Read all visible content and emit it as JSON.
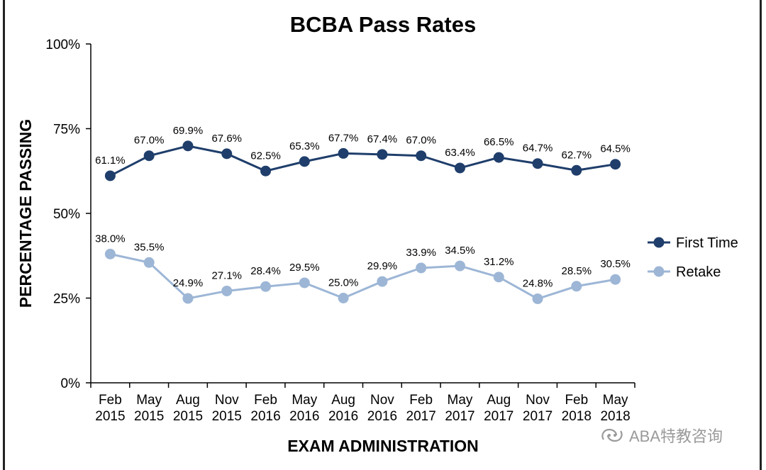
{
  "chart_data": {
    "type": "line",
    "title": "BCBA Pass Rates",
    "xlabel": "EXAM ADMINISTRATION",
    "ylabel": "PERCENTAGE PASSING",
    "ylim": [
      0,
      100
    ],
    "yticks": [
      "0%",
      "25%",
      "50%",
      "75%",
      "100%"
    ],
    "categories": [
      [
        "Feb",
        "2015"
      ],
      [
        "May",
        "2015"
      ],
      [
        "Aug",
        "2015"
      ],
      [
        "Nov",
        "2015"
      ],
      [
        "Feb",
        "2016"
      ],
      [
        "May",
        "2016"
      ],
      [
        "Aug",
        "2016"
      ],
      [
        "Nov",
        "2016"
      ],
      [
        "Feb",
        "2017"
      ],
      [
        "May",
        "2017"
      ],
      [
        "Aug",
        "2017"
      ],
      [
        "Nov",
        "2017"
      ],
      [
        "Feb",
        "2018"
      ],
      [
        "May",
        "2018"
      ]
    ],
    "series": [
      {
        "name": "First Time",
        "color": "#1f3e6b",
        "values": [
          61.1,
          67.0,
          69.9,
          67.6,
          62.5,
          65.3,
          67.7,
          67.4,
          67.0,
          63.4,
          66.5,
          64.7,
          62.7,
          64.5
        ],
        "labels": [
          "61.1%",
          "67.0%",
          "69.9%",
          "67.6%",
          "62.5%",
          "65.3%",
          "67.7%",
          "67.4%",
          "67.0%",
          "63.4%",
          "66.5%",
          "64.7%",
          "62.7%",
          "64.5%"
        ]
      },
      {
        "name": "Retake",
        "color": "#9db6d6",
        "values": [
          38.0,
          35.5,
          24.9,
          27.1,
          28.4,
          29.5,
          25.0,
          29.9,
          33.9,
          34.5,
          31.2,
          24.8,
          28.5,
          30.5
        ],
        "labels": [
          "38.0%",
          "35.5%",
          "24.9%",
          "27.1%",
          "28.4%",
          "29.5%",
          "25.0%",
          "29.9%",
          "33.9%",
          "34.5%",
          "31.2%",
          "24.8%",
          "28.5%",
          "30.5%"
        ]
      }
    ],
    "grid": false,
    "legend_position": "right"
  },
  "watermark": {
    "text": "ABA特教咨询",
    "icon": "wechat-official-account-icon"
  }
}
